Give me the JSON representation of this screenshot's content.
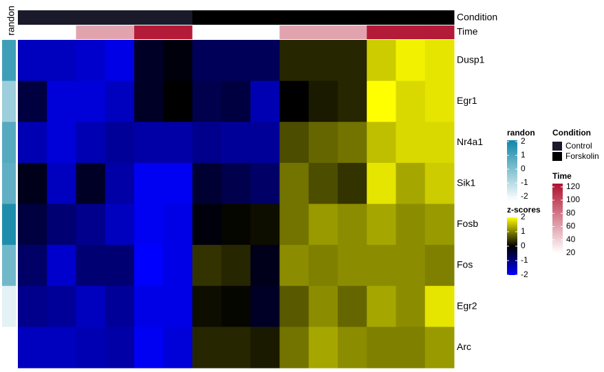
{
  "chart_data": {
    "type": "heatmap",
    "rows": [
      "Dusp1",
      "Egr1",
      "Nr4a1",
      "Sik1",
      "Fosb",
      "Fos",
      "Egr2",
      "Arc"
    ],
    "values": [
      [
        -1.5,
        -1.5,
        -1.6,
        -1.8,
        -0.3,
        -0.1,
        -0.7,
        -0.7,
        -0.7,
        0.3,
        0.3,
        0.3,
        1.6,
        1.9,
        1.8
      ],
      [
        -0.5,
        -1.7,
        -1.7,
        -1.5,
        -0.3,
        0,
        -0.6,
        -0.5,
        -1.4,
        0,
        0.2,
        0.3,
        2.0,
        1.7,
        1.8
      ],
      [
        -1.4,
        -1.7,
        -1.4,
        -1.2,
        -1.3,
        -1.3,
        -1.1,
        -1.2,
        -1.2,
        0.6,
        0.8,
        0.9,
        1.5,
        1.7,
        1.7
      ],
      [
        -0.2,
        -1.5,
        -0.3,
        -1.3,
        -1.9,
        -1.9,
        -0.4,
        -0.6,
        -0.8,
        0.9,
        0.6,
        0.4,
        1.8,
        1.3,
        1.6
      ],
      [
        -0.5,
        -0.9,
        -1.1,
        -1.5,
        -1.9,
        -1.8,
        -0.1,
        0.05,
        0.1,
        0.9,
        1.2,
        1.1,
        1.3,
        1.1,
        1.2
      ],
      [
        -0.8,
        -1.6,
        -0.9,
        -0.9,
        -2.2,
        -1.8,
        0.4,
        0.3,
        -0.2,
        1.1,
        1.0,
        1.1,
        1.1,
        1.1,
        1.0
      ],
      [
        -1.1,
        -1.2,
        -1.5,
        -1.2,
        -1.8,
        -1.8,
        0.1,
        0.05,
        -0.3,
        0.7,
        1.1,
        0.8,
        1.3,
        1.1,
        1.8
      ],
      [
        -1.5,
        -1.5,
        -1.4,
        -1.3,
        -1.9,
        -1.7,
        0.3,
        0.3,
        0.2,
        0.9,
        1.3,
        1.1,
        1.0,
        1.0,
        1.2
      ]
    ],
    "z_title": "z-scores",
    "zlim": [
      -2,
      2
    ],
    "zticks": [
      2,
      1,
      0,
      -1,
      -2
    ],
    "z_colors": [
      "#0000ff",
      "#000000",
      "#ffff00"
    ],
    "randon": {
      "title": "randon",
      "values": [
        1.2,
        -0.5,
        0.8,
        0.6,
        1.8,
        0.3,
        -1.8,
        -2.3
      ],
      "lim": [
        -2.3,
        2.1
      ],
      "ticks": [
        2,
        1,
        0,
        -1,
        -2
      ],
      "colors": [
        "#ffffff",
        "#0f86a6"
      ]
    },
    "condition": {
      "title": "Condition",
      "categories": [
        "Control",
        "Forskolin"
      ],
      "colors": [
        "#1a1a2a",
        "#000000"
      ],
      "values": [
        "Control",
        "Control",
        "Control",
        "Control",
        "Control",
        "Control",
        "Forskolin",
        "Forskolin",
        "Forskolin",
        "Forskolin",
        "Forskolin",
        "Forskolin",
        "Forskolin",
        "Forskolin",
        "Forskolin"
      ]
    },
    "time": {
      "title": "Time",
      "values": [
        20,
        20,
        60,
        60,
        120,
        120,
        20,
        20,
        20,
        60,
        60,
        60,
        120,
        120,
        120
      ],
      "lim": [
        20,
        125
      ],
      "ticks": [
        120,
        100,
        80,
        60,
        40,
        20
      ],
      "colors": [
        "#ffffff",
        "#b0102e"
      ]
    }
  }
}
